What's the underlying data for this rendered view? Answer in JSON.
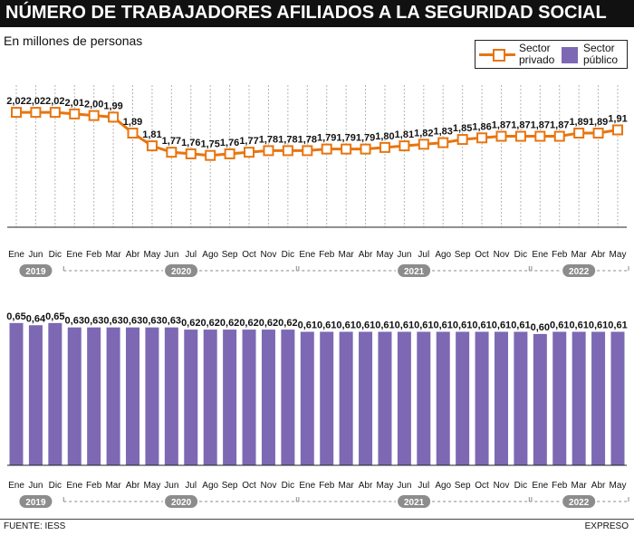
{
  "header": {
    "title": "NÚMERO DE TRABAJADORES AFILIADOS A LA SEGURIDAD SOCIAL"
  },
  "subtitle": "En millones de personas",
  "legend": {
    "private_line1": "Sector",
    "private_line2": "privado",
    "public_line1": "Sector",
    "public_line2": "público"
  },
  "colors": {
    "private": "#e8750f",
    "public": "#7d68b4",
    "year_badge": "#8c8c8c",
    "grid": "#b5b5b5"
  },
  "footer": {
    "source": "FUENTE: IESS",
    "brand": "EXPRESO"
  },
  "chart_data": [
    {
      "type": "line",
      "series_name": "Sector privado",
      "categories": [
        "Ene",
        "Jun",
        "Dic",
        "Ene",
        "Feb",
        "Mar",
        "Abr",
        "May",
        "Jun",
        "Jul",
        "Ago",
        "Sep",
        "Oct",
        "Nov",
        "Dic",
        "Ene",
        "Feb",
        "Mar",
        "Abr",
        "May",
        "Jun",
        "Jul",
        "Ago",
        "Sep",
        "Oct",
        "Nov",
        "Dic",
        "Ene",
        "Feb",
        "Mar",
        "Abr",
        "May"
      ],
      "values": [
        2.02,
        2.02,
        2.02,
        2.01,
        2.0,
        1.99,
        1.89,
        1.81,
        1.77,
        1.76,
        1.75,
        1.76,
        1.77,
        1.78,
        1.78,
        1.78,
        1.79,
        1.79,
        1.79,
        1.8,
        1.81,
        1.82,
        1.83,
        1.85,
        1.86,
        1.87,
        1.87,
        1.87,
        1.87,
        1.89,
        1.89,
        1.91
      ],
      "labels": [
        "2,02",
        "2,02",
        "2,02",
        "2,01",
        "2,00",
        "1,99",
        "1,89",
        "1,81",
        "1,77",
        "1,76",
        "1,75",
        "1,76",
        "1,77",
        "1,78",
        "1,78",
        "1,78",
        "1,79",
        "1,79",
        "1,79",
        "1,80",
        "1,81",
        "1,82",
        "1,83",
        "1,85",
        "1,86",
        "1,87",
        "1,87",
        "1,87",
        "1,87",
        "1,89",
        "1,89",
        "1,91"
      ],
      "years": [
        {
          "label": "2019",
          "from": 0,
          "to": 2
        },
        {
          "label": "2020",
          "from": 3,
          "to": 14
        },
        {
          "label": "2021",
          "from": 15,
          "to": 26
        },
        {
          "label": "2022",
          "from": 27,
          "to": 31
        }
      ],
      "ylim": [
        1.3,
        2.1
      ]
    },
    {
      "type": "bar",
      "series_name": "Sector público",
      "categories": [
        "Ene",
        "Jun",
        "Dic",
        "Ene",
        "Feb",
        "Mar",
        "Abr",
        "May",
        "Jun",
        "Jul",
        "Ago",
        "Sep",
        "Oct",
        "Nov",
        "Dic",
        "Ene",
        "Feb",
        "Mar",
        "Abr",
        "May",
        "Jun",
        "Jul",
        "Ago",
        "Sep",
        "Oct",
        "Nov",
        "Dic",
        "Ene",
        "Feb",
        "Mar",
        "Abr",
        "May"
      ],
      "values": [
        0.65,
        0.64,
        0.65,
        0.63,
        0.63,
        0.63,
        0.63,
        0.63,
        0.63,
        0.62,
        0.62,
        0.62,
        0.62,
        0.62,
        0.62,
        0.61,
        0.61,
        0.61,
        0.61,
        0.61,
        0.61,
        0.61,
        0.61,
        0.61,
        0.61,
        0.61,
        0.61,
        0.6,
        0.61,
        0.61,
        0.61,
        0.61
      ],
      "labels": [
        "0,65",
        "0,64",
        "0,65",
        "0,63",
        "0,63",
        "0,63",
        "0,63",
        "0,63",
        "0,63",
        "0,62",
        "0,62",
        "0,62",
        "0,62",
        "0,62",
        "0,62",
        "0,61",
        "0,61",
        "0,61",
        "0,61",
        "0,61",
        "0,61",
        "0,61",
        "0,61",
        "0,61",
        "0,61",
        "0,61",
        "0,61",
        "0,60",
        "0,61",
        "0,61",
        "0,61",
        "0,61"
      ],
      "years": [
        {
          "label": "2019",
          "from": 0,
          "to": 2
        },
        {
          "label": "2020",
          "from": 3,
          "to": 14
        },
        {
          "label": "2021",
          "from": 15,
          "to": 26
        },
        {
          "label": "2022",
          "from": 27,
          "to": 31
        }
      ],
      "ylim": [
        0,
        0.67
      ]
    }
  ]
}
